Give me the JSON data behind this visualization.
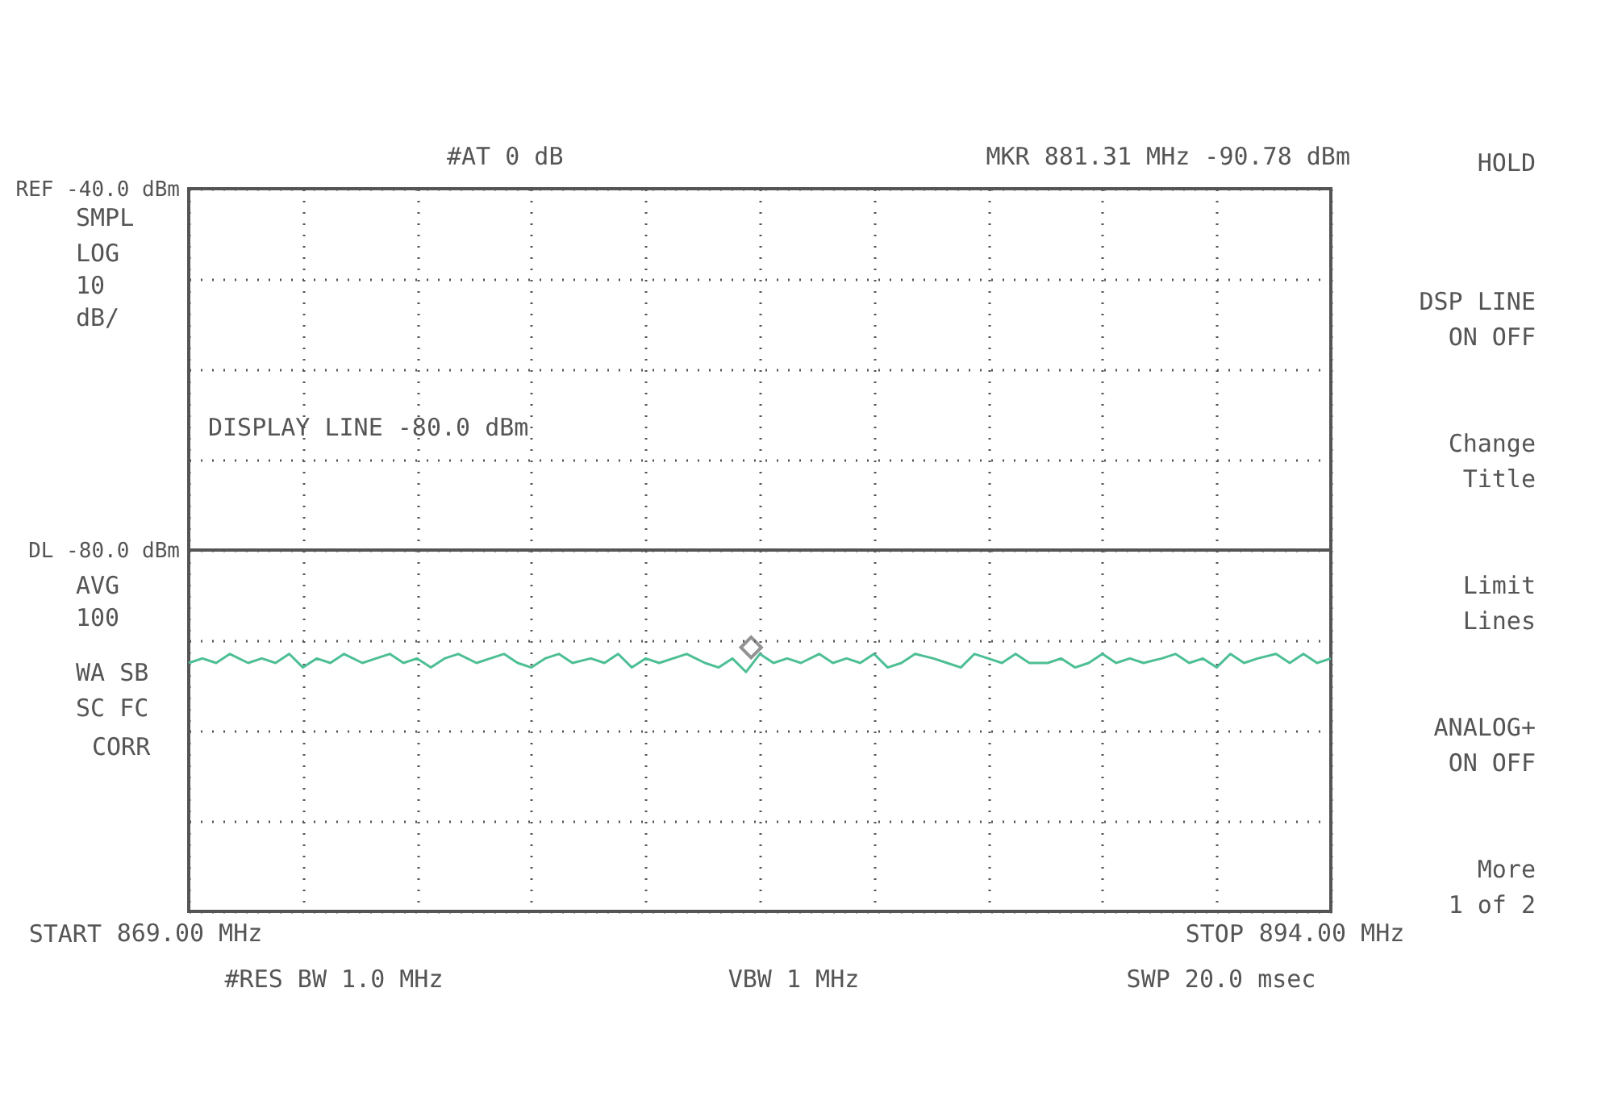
{
  "chart_data": {
    "type": "line",
    "xlim": [
      869,
      894
    ],
    "xticks": [
      {
        "value": 869,
        "label": "869.00 MHz"
      },
      {
        "value": 871.5,
        "label": null
      },
      {
        "value": 874,
        "label": null
      },
      {
        "value": 876.5,
        "label": null
      },
      {
        "value": 879,
        "label": null
      },
      {
        "value": 881.5,
        "label": null
      },
      {
        "value": 884,
        "label": null
      },
      {
        "value": 886.5,
        "label": null
      },
      {
        "value": 889,
        "label": null
      },
      {
        "value": 891.5,
        "label": null
      },
      {
        "value": 894,
        "label": "894.00 MHz"
      }
    ],
    "ylim": [
      -120,
      -40
    ],
    "yticks": [
      {
        "value": -40,
        "label": "REF -40.0 dBm"
      },
      {
        "value": -50,
        "label": null
      },
      {
        "value": -60,
        "label": null
      },
      {
        "value": -70,
        "label": null
      },
      {
        "value": -80,
        "label": "DL -80.0 dBm"
      },
      {
        "value": -90,
        "label": null
      },
      {
        "value": -100,
        "label": null
      },
      {
        "value": -110,
        "label": null
      },
      {
        "value": -120,
        "label": null
      }
    ],
    "grid": true,
    "marker": "none",
    "x": [
      869,
      869.3,
      869.6,
      869.9,
      870.3,
      870.6,
      870.9,
      871.2,
      871.5,
      871.8,
      872.1,
      872.4,
      872.8,
      873.1,
      873.4,
      873.7,
      874,
      874.3,
      874.6,
      874.9,
      875.3,
      875.6,
      875.9,
      876.2,
      876.5,
      876.8,
      877.1,
      877.4,
      877.8,
      878.1,
      878.4,
      878.7,
      879,
      879.3,
      879.6,
      879.9,
      880.3,
      880.6,
      880.9,
      881.2,
      881.5,
      881.8,
      882.1,
      882.4,
      882.8,
      883.1,
      883.4,
      883.7,
      884,
      884.3,
      884.6,
      884.9,
      885.3,
      885.6,
      885.9,
      886.2,
      886.5,
      886.8,
      887.1,
      887.4,
      887.8,
      888.1,
      888.4,
      888.7,
      889,
      889.3,
      889.6,
      889.9,
      890.3,
      890.6,
      890.9,
      891.2,
      891.5,
      891.8,
      892.1,
      892.4,
      892.8,
      893.1,
      893.4,
      893.7,
      894
    ],
    "series": [
      {
        "type": "scatter",
        "color": "#666666",
        "marker": "diamond",
        "x": [
          881.31
        ],
        "values": [
          -90.78
        ]
      },
      {
        "color": "#4dbf94",
        "values": [
          -92.5,
          -92,
          -92.5,
          -91.5,
          -92.5,
          -92,
          -92.5,
          -91.5,
          -93,
          -92,
          -92.5,
          -91.5,
          -92.5,
          -92,
          -91.5,
          -92.5,
          -92,
          -93,
          -92,
          -91.5,
          -92.5,
          -92,
          -91.5,
          -92.5,
          -93,
          -92,
          -91.5,
          -92.5,
          -92,
          -92.5,
          -91.5,
          -93,
          -92,
          -92.5,
          -92,
          -91.5,
          -92.5,
          -93,
          -92,
          -93.5,
          -91.5,
          -92.5,
          -92,
          -92.5,
          -91.5,
          -92.5,
          -92,
          -92.5,
          -91.5,
          -93,
          -92.5,
          -91.5,
          -92,
          -92.5,
          -93,
          -91.5,
          -92,
          -92.5,
          -91.5,
          -92.5,
          -92.5,
          -92,
          -93,
          -92.5,
          -91.5,
          -92.5,
          -92,
          -92.5,
          -92,
          -91.5,
          -92.5,
          -92,
          -93,
          -91.5,
          -92.5,
          -92,
          -91.5,
          -92.5,
          -91.5,
          -92.5,
          -92
        ]
      }
    ],
    "ref_lines": [
      {
        "axis": "y",
        "value": -80,
        "label": "DISPLAY LINE -80.0 dBm",
        "color": "#555555",
        "line_style": "solid"
      }
    ],
    "annotations": [
      "#AT 0 dB",
      "MKR 881.31 MHz -90.78 dBm",
      "SMPL",
      "LOG",
      "10",
      "dB/",
      "AVG",
      "100",
      "WA SB",
      "SC FC",
      "CORR",
      "HOLD",
      "DSP LINE",
      "ON OFF",
      "Change",
      "Title",
      "Limit",
      "Lines",
      "ANALOG+",
      "ON OFF",
      "More",
      "1 of 2",
      "#RES BW 1.0 MHz",
      "VBW 1 MHz",
      "SWP 20.0 msec",
      "START",
      "STOP"
    ]
  }
}
